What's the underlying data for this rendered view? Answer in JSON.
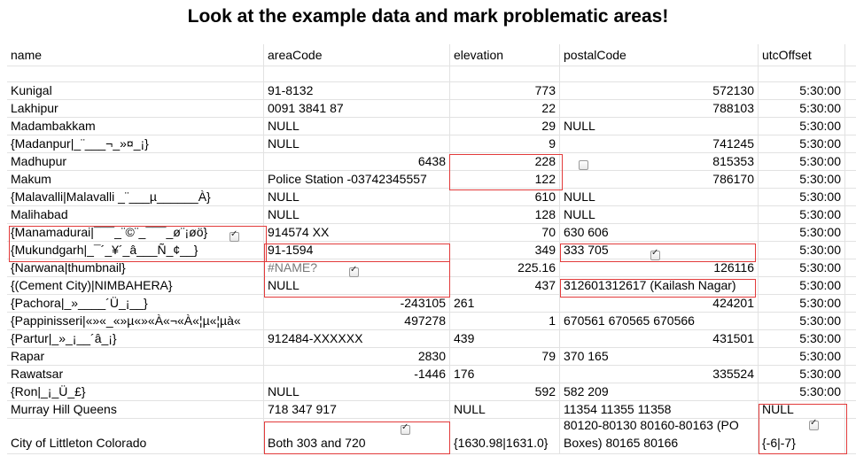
{
  "title": "Look at the example data and mark problematic areas!",
  "headers": [
    "name",
    "areaCode",
    "elevation",
    "postalCode",
    "utcOffset"
  ],
  "rows": [
    [
      "Kunigal",
      "91-8132",
      "773",
      "572130",
      "5:30:00"
    ],
    [
      "Lakhipur",
      "0091 3841 87",
      "22",
      "788103",
      "5:30:00"
    ],
    [
      "Madambakkam",
      "NULL",
      "29",
      "NULL",
      "5:30:00"
    ],
    [
      "{Madanpur|_¨___¬_»¤_¡}",
      "NULL",
      "9",
      "741245",
      "5:30:00"
    ],
    [
      "Madhupur",
      "6438",
      "228",
      "815353",
      "5:30:00"
    ],
    [
      "Makum",
      "Police Station -03742345557",
      "122",
      "786170",
      "5:30:00"
    ],
    [
      "{Malavalli|Malavalli _¨___µ______À}",
      "NULL",
      "610",
      "NULL",
      "5:30:00"
    ],
    [
      "Malihabad",
      "NULL",
      "128",
      "NULL",
      "5:30:00"
    ],
    [
      "{Manamadurai|¯¯¯_¨©¨_¯¯¯_ø¨¡øö}",
      "914574 XX",
      "70",
      "630 606",
      "5:30:00"
    ],
    [
      "{Mukundgarh|_¯´_¥´_â___Ñ_¢__}",
      "91-1594",
      "349",
      "333 705",
      "5:30:00"
    ],
    [
      "{Narwana|thumbnail}",
      "#NAME?",
      "225.16",
      "126116",
      "5:30:00"
    ],
    [
      "{(Cement City)|NIMBAHERA}",
      "NULL",
      "437",
      "312601312617 (Kailash Nagar)",
      "5:30:00"
    ],
    [
      "{Pachora|_»____´Ü_¡__}",
      "-243105",
      "261",
      "424201",
      "5:30:00"
    ],
    [
      "{Pappinisseri|«»«_«»µ«»«À«¬«À«¦µ«¦µà«",
      "497278",
      "1",
      "670561 670565 670566",
      "5:30:00"
    ],
    [
      "{Partur|_»_¡__´â_¡}",
      "912484-XXXXXX",
      "439",
      "431501",
      "5:30:00"
    ],
    [
      "Rapar",
      "2830",
      "79",
      "370 165",
      "5:30:00"
    ],
    [
      "Rawatsar",
      "-1446",
      "176",
      "335524",
      "5:30:00"
    ],
    [
      "{Ron|_¡_Ü_£}",
      "NULL",
      "592",
      "582 209",
      "5:30:00"
    ],
    [
      "Murray Hill Queens",
      "718 347 917",
      "NULL",
      "11354 11355 11358",
      "NULL"
    ],
    [
      "City of Littleton Colorado",
      "Both 303 and 720",
      "{1630.98|1631.0}",
      "80120-80130 80160-80163 (PO Boxes) 80165 80166",
      "{-6|-7}"
    ]
  ],
  "align": [
    [
      "l",
      "l",
      "r",
      "r",
      "r"
    ],
    [
      "l",
      "l",
      "r",
      "r",
      "r"
    ],
    [
      "l",
      "l",
      "r",
      "l",
      "r"
    ],
    [
      "l",
      "l",
      "r",
      "r",
      "r"
    ],
    [
      "l",
      "r",
      "r",
      "r",
      "r"
    ],
    [
      "l",
      "l",
      "r",
      "r",
      "r"
    ],
    [
      "l",
      "l",
      "r",
      "l",
      "r"
    ],
    [
      "l",
      "l",
      "r",
      "l",
      "r"
    ],
    [
      "l",
      "l",
      "r",
      "l",
      "r"
    ],
    [
      "l",
      "l",
      "r",
      "l",
      "r"
    ],
    [
      "l",
      "l",
      "r",
      "r",
      "r"
    ],
    [
      "l",
      "l",
      "r",
      "l",
      "r"
    ],
    [
      "l",
      "r",
      "l",
      "r",
      "r"
    ],
    [
      "l",
      "r",
      "r",
      "l",
      "r"
    ],
    [
      "l",
      "l",
      "l",
      "r",
      "r"
    ],
    [
      "l",
      "r",
      "r",
      "l",
      "r"
    ],
    [
      "l",
      "r",
      "l",
      "r",
      "r"
    ],
    [
      "l",
      "l",
      "r",
      "l",
      "r"
    ],
    [
      "l",
      "l",
      "l",
      "l",
      "l"
    ],
    [
      "l",
      "l",
      "l",
      "l",
      "l"
    ]
  ]
}
